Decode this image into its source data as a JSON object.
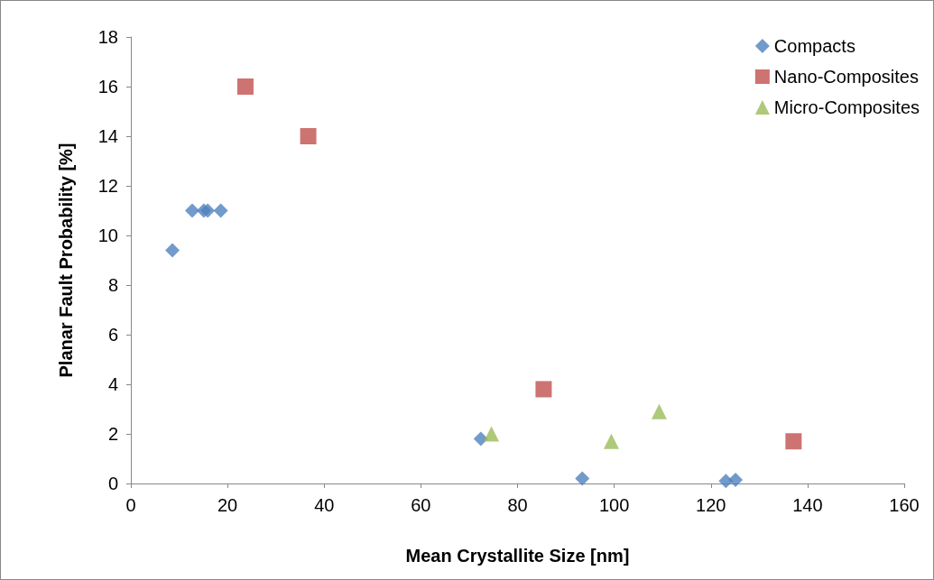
{
  "chart_data": {
    "type": "scatter",
    "xlabel": "Mean Crystallite Size [nm]",
    "ylabel": "Planar Fault Probability [%]",
    "xlim": [
      0,
      160
    ],
    "xticks": [
      0,
      20,
      40,
      60,
      80,
      100,
      120,
      140,
      160
    ],
    "ylim": [
      0,
      18
    ],
    "yticks": [
      0,
      2,
      4,
      6,
      8,
      10,
      12,
      14,
      16,
      18
    ],
    "grid": false,
    "legend": "top right",
    "series": [
      {
        "name": "Compacts",
        "color": "#4f81bd",
        "marker": "diamond",
        "x": [
          8.6,
          12.7,
          15.1,
          15.9,
          18.6,
          72.4,
          93.4,
          123.1,
          125.1
        ],
        "values": [
          9.4,
          11,
          11,
          11,
          11,
          1.8,
          0.2,
          0.1,
          0.15
        ]
      },
      {
        "name": "Nano-Composites",
        "color": "#c0504d",
        "marker": "square",
        "x": [
          23.7,
          36.7,
          85.4,
          137.1
        ],
        "values": [
          16,
          14,
          3.8,
          1.7
        ]
      },
      {
        "name": "Micro-Composites",
        "color": "#9bbb59",
        "marker": "triangle",
        "x": [
          74.6,
          99.4,
          109.3
        ],
        "values": [
          2,
          1.7,
          2.9
        ]
      }
    ]
  }
}
